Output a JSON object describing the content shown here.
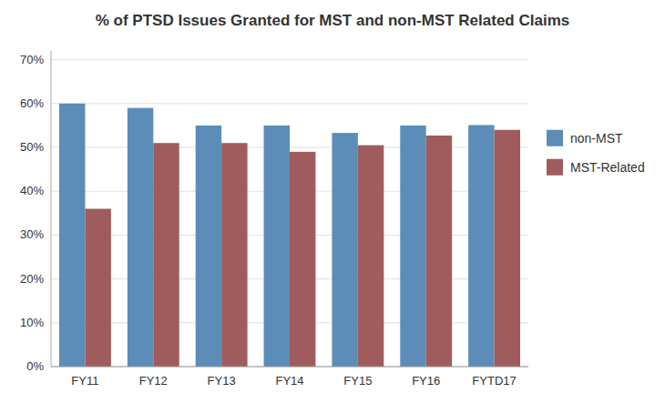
{
  "chart_data": {
    "type": "bar",
    "title": "% of PTSD Issues Granted for MST and non-MST Related Claims",
    "categories": [
      "FY11",
      "FY12",
      "FY13",
      "FY14",
      "FY15",
      "FY16",
      "FYTD17"
    ],
    "series": [
      {
        "name": "non-MST",
        "color": "#5B8DB8",
        "values": [
          0.6,
          0.59,
          0.55,
          0.55,
          0.533,
          0.55,
          0.551
        ]
      },
      {
        "name": "MST-Related",
        "color": "#A05C5C",
        "values": [
          0.36,
          0.51,
          0.51,
          0.49,
          0.505,
          0.527,
          0.54
        ]
      }
    ],
    "ylim": [
      0,
      0.72
    ],
    "yticks": [
      {
        "value": 0.0,
        "label": "0%"
      },
      {
        "value": 0.1,
        "label": "10%"
      },
      {
        "value": 0.2,
        "label": "20%"
      },
      {
        "value": 0.3,
        "label": "30%"
      },
      {
        "value": 0.4,
        "label": "40%"
      },
      {
        "value": 0.5,
        "label": "50%"
      },
      {
        "value": 0.6,
        "label": "60%"
      },
      {
        "value": 0.7,
        "label": "70%"
      }
    ],
    "grid": true,
    "legend": "right"
  }
}
